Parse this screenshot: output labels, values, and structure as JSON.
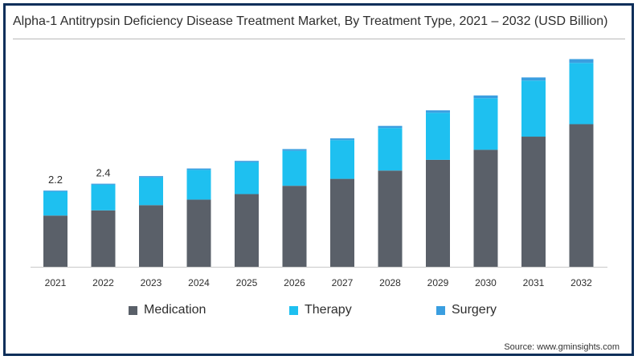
{
  "title": "Alpha-1 Antitrypsin Deficiency Disease Treatment Market, By Treatment Type, 2021 – 2032 (USD Billion)",
  "source": "Source: www.gminsights.com",
  "colors": {
    "medication": "#5a6069",
    "therapy": "#1ec0f0",
    "surgery": "#3a9ee0",
    "frame": "#0d2f5a"
  },
  "chart_data": {
    "type": "bar",
    "stacked": true,
    "categories": [
      "2021",
      "2022",
      "2023",
      "2024",
      "2025",
      "2026",
      "2027",
      "2028",
      "2029",
      "2030",
      "2031",
      "2032"
    ],
    "series": [
      {
        "name": "Medication",
        "values": [
          1.48,
          1.63,
          1.78,
          1.94,
          2.1,
          2.34,
          2.54,
          2.78,
          3.09,
          3.38,
          3.76,
          4.12
        ]
      },
      {
        "name": "Therapy",
        "values": [
          0.69,
          0.74,
          0.8,
          0.86,
          0.92,
          1.01,
          1.12,
          1.23,
          1.36,
          1.49,
          1.62,
          1.77
        ]
      },
      {
        "name": "Surgery",
        "values": [
          0.03,
          0.03,
          0.04,
          0.04,
          0.04,
          0.05,
          0.05,
          0.06,
          0.07,
          0.08,
          0.09,
          0.11
        ]
      }
    ],
    "data_labels": [
      "2.2",
      "2.4",
      "",
      "",
      "",
      "",
      "",
      "",
      "",
      "",
      "",
      ""
    ],
    "ylim": [
      0,
      6.5
    ],
    "legend_position": "bottom",
    "grid": false
  }
}
